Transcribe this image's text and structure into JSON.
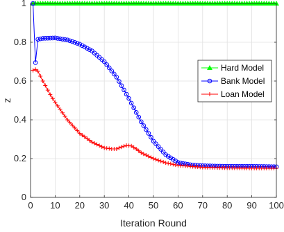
{
  "chart_data": {
    "type": "line",
    "title": "",
    "xlabel": "Iteration Round",
    "ylabel": "z",
    "xlim": [
      0,
      100
    ],
    "ylim": [
      0,
      1
    ],
    "xticks": [
      0,
      10,
      20,
      30,
      40,
      50,
      60,
      70,
      80,
      90,
      100
    ],
    "yticks": [
      0,
      0.2,
      0.4,
      0.6,
      0.8,
      1
    ],
    "xtick_labels": [
      "0",
      "10",
      "20",
      "30",
      "40",
      "50",
      "60",
      "70",
      "80",
      "90",
      "100"
    ],
    "ytick_labels": [
      "0",
      "0.2",
      "0.4",
      "0.6",
      "0.8",
      "1"
    ],
    "grid": true,
    "legend_position": "middle-right",
    "series": [
      {
        "name": "Hard Model",
        "color": "#00ff00",
        "marker": "triangle",
        "x": [
          1,
          100
        ],
        "values": [
          1.0,
          1.0
        ]
      },
      {
        "name": "Bank Model",
        "color": "#0000ff",
        "marker": "circle",
        "x": [
          1,
          2,
          3,
          5,
          10,
          15,
          20,
          25,
          30,
          35,
          40,
          45,
          50,
          55,
          60,
          65,
          70,
          80,
          90,
          100
        ],
        "values": [
          1.0,
          0.695,
          0.815,
          0.82,
          0.822,
          0.812,
          0.79,
          0.755,
          0.7,
          0.62,
          0.51,
          0.39,
          0.29,
          0.22,
          0.18,
          0.168,
          0.163,
          0.16,
          0.16,
          0.158
        ]
      },
      {
        "name": "Loan Model",
        "color": "#ff0000",
        "marker": "plus",
        "x": [
          1,
          2,
          3,
          5,
          8,
          10,
          15,
          20,
          25,
          30,
          33,
          35,
          37,
          39,
          41,
          43,
          45,
          50,
          55,
          60,
          70,
          80,
          90,
          100
        ],
        "values": [
          0.655,
          0.66,
          0.65,
          0.6,
          0.53,
          0.49,
          0.4,
          0.33,
          0.285,
          0.255,
          0.25,
          0.25,
          0.26,
          0.268,
          0.265,
          0.25,
          0.23,
          0.2,
          0.178,
          0.165,
          0.155,
          0.152,
          0.15,
          0.15
        ]
      }
    ]
  }
}
